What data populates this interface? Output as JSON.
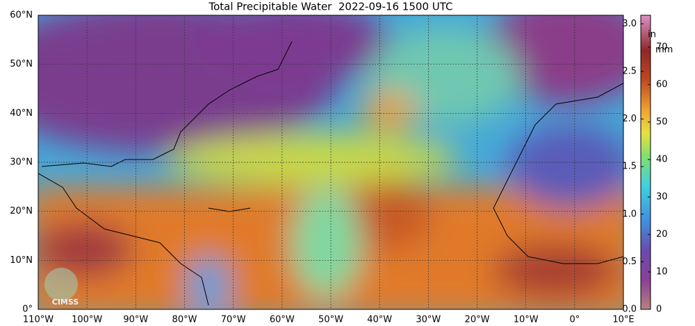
{
  "title": "Total Precipitable Water  2022-09-16 1500 UTC",
  "map": {
    "lat_labels": [
      "0°",
      "10°N",
      "20°N",
      "30°N",
      "40°N",
      "50°N",
      "60°N"
    ],
    "lon_labels": [
      "110°W",
      "100°W",
      "90°W",
      "80°W",
      "70°W",
      "60°W",
      "50°W",
      "40°W",
      "30°W",
      "20°W",
      "10°W",
      "0°",
      "10°E"
    ],
    "logo": "CIMSS"
  },
  "colorbar": {
    "in_unit": "in",
    "mm_unit": "mm",
    "in_lim": [
      0,
      3.09
    ],
    "mm_lim": [
      0,
      78.5
    ],
    "in_ticks": [
      {
        "value": 0,
        "label": "0.0"
      },
      {
        "value": 0.5,
        "label": "0.5"
      },
      {
        "value": 1,
        "label": "1.0"
      },
      {
        "value": 1.5,
        "label": "1.5"
      },
      {
        "value": 2,
        "label": "2.0"
      },
      {
        "value": 2.5,
        "label": "2.5"
      },
      {
        "value": 3,
        "label": "3.0"
      }
    ],
    "mm_ticks": [
      0,
      10,
      20,
      30,
      40,
      50,
      60,
      70
    ]
  }
}
